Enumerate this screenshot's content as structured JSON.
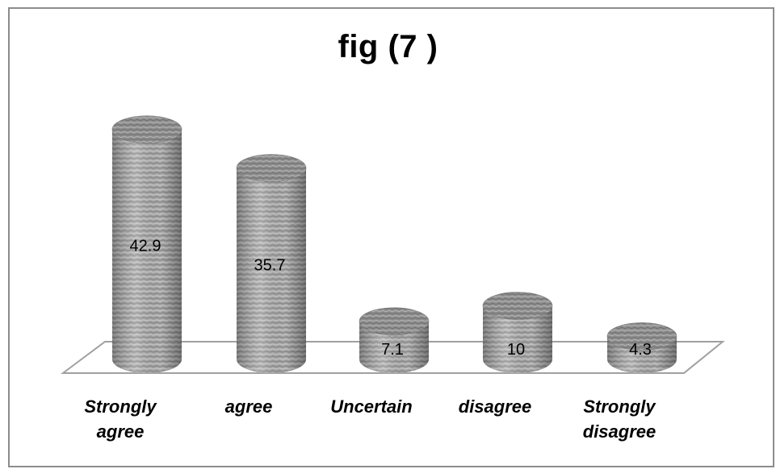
{
  "chart_data": {
    "type": "bar",
    "title": "fig (7 )",
    "categories": [
      [
        "Strongly",
        "agree"
      ],
      [
        "agree"
      ],
      [
        "Uncertain"
      ],
      [
        "disagree"
      ],
      [
        "Strongly",
        "disagree"
      ]
    ],
    "values": [
      42.9,
      35.7,
      7.1,
      10,
      4.3
    ],
    "value_labels": [
      "42.9",
      "35.7",
      "7.1",
      "10",
      "4.3"
    ],
    "xlabel": "",
    "ylabel": "",
    "grid": false,
    "legend": "none",
    "colors": {
      "bar_side": "#a9a9a9",
      "bar_top": "#8a8a8a",
      "floor_edge": "#a0a0a0",
      "frame": "#8c8c8c"
    }
  }
}
